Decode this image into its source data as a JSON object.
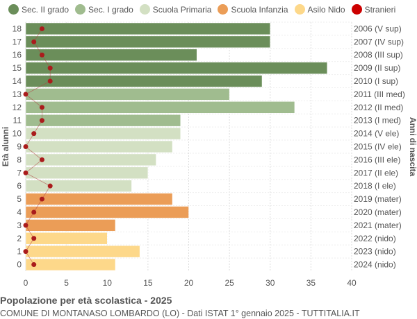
{
  "chart_data": {
    "type": "bar",
    "orientation": "horizontal",
    "title": "Popolazione per età scolastica - 2025",
    "subtitle": "COMUNE DI MONTANASO LOMBARDO (LO) - Dati ISTAT 1° gennaio 2025 - TUTTITALIA.IT",
    "ylabel": "Età alunni",
    "ylabel_right": "Anni di nascita",
    "xlim": [
      0,
      40
    ],
    "xticks": [
      0,
      5,
      10,
      15,
      20,
      25,
      30,
      35,
      40
    ],
    "grid": true,
    "legend_position": "top",
    "legend": [
      {
        "name": "Sec. II grado",
        "color": "#6b8e5a"
      },
      {
        "name": "Sec. I grado",
        "color": "#a0bc8f"
      },
      {
        "name": "Scuola Primaria",
        "color": "#d3e0c3"
      },
      {
        "name": "Scuola Infanzia",
        "color": "#eb9d57"
      },
      {
        "name": "Asilo Nido",
        "color": "#fdd88a"
      },
      {
        "name": "Stranieri",
        "color": "#cc0000"
      }
    ],
    "categories": [
      "0",
      "1",
      "2",
      "3",
      "4",
      "5",
      "6",
      "7",
      "8",
      "9",
      "10",
      "11",
      "12",
      "13",
      "14",
      "15",
      "16",
      "17",
      "18"
    ],
    "birth_years": [
      "2024 (nido)",
      "2023 (nido)",
      "2022 (nido)",
      "2021 (mater)",
      "2020 (mater)",
      "2019 (mater)",
      "2018 (I ele)",
      "2017 (II ele)",
      "2016 (III ele)",
      "2015 (IV ele)",
      "2014 (V ele)",
      "2013 (I med)",
      "2012 (II med)",
      "2011 (III med)",
      "2010 (I sup)",
      "2009 (II sup)",
      "2008 (III sup)",
      "2007 (IV sup)",
      "2006 (V sup)"
    ],
    "groups": [
      4,
      4,
      4,
      3,
      3,
      3,
      2,
      2,
      2,
      2,
      2,
      1,
      1,
      1,
      0,
      0,
      0,
      0,
      0
    ],
    "values": [
      11,
      14,
      10,
      11,
      20,
      18,
      13,
      15,
      16,
      18,
      19,
      19,
      33,
      25,
      29,
      37,
      21,
      30,
      30
    ],
    "stranieri": [
      1,
      0,
      1,
      0,
      1,
      2,
      3,
      0,
      2,
      0,
      1,
      2,
      2,
      0,
      3,
      3,
      2,
      1,
      2
    ]
  }
}
